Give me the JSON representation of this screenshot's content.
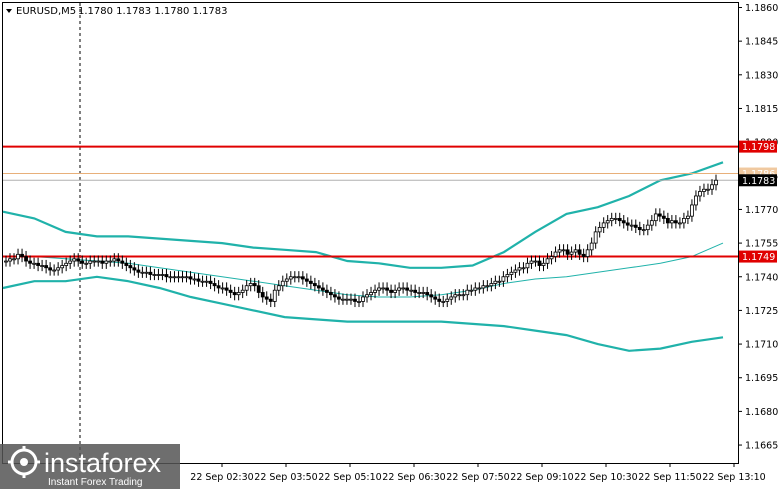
{
  "header": {
    "symbol": "EURUSD,M5",
    "ohlc": "1.1780 1.1783 1.1780 1.1783"
  },
  "watermark": {
    "brand": "instaforex",
    "tagline": "Instant Forex Trading"
  },
  "colors": {
    "background": "#ffffff",
    "candle": "#000000",
    "bollinger": "#20b2aa",
    "level_line": "#e00000",
    "level_label_bg": "#e00000",
    "price_label_bg": "#000000",
    "grid_dash": "#000000"
  },
  "chart_data": {
    "type": "candlestick",
    "ylim": [
      1.1657,
      1.1862
    ],
    "y_ticks": [
      "1.1860",
      "1.1845",
      "1.1830",
      "1.1815",
      "1.1800",
      "1.1785",
      "1.1770",
      "1.1755",
      "1.1740",
      "1.1725",
      "1.1710",
      "1.1695",
      "1.1680",
      "1.1665"
    ],
    "x_tick_labels": [
      "22 Sep 02:30",
      "22 Sep 03:50",
      "22 Sep 05:10",
      "22 Sep 06:30",
      "22 Sep 07:50",
      "22 Sep 09:10",
      "22 Sep 10:30",
      "22 Sep 11:50",
      "22 Sep 13:10"
    ],
    "levels": [
      {
        "price": 1.1798,
        "label": "1.1798"
      },
      {
        "price": 1.1749,
        "label": "1.1749"
      }
    ],
    "current_price": {
      "price": 1.1783,
      "label": "1.1783"
    },
    "secondary_price": {
      "price": 1.1786,
      "label": "1.1786"
    },
    "close": [
      1.1747,
      1.1748,
      1.1748,
      1.175,
      1.1749,
      1.1747,
      1.1746,
      1.1746,
      1.1745,
      1.1745,
      1.1744,
      1.1743,
      1.1743,
      1.1744,
      1.1745,
      1.1746,
      1.1747,
      1.1748,
      1.1747,
      1.1746,
      1.1746,
      1.1747,
      1.1747,
      1.1747,
      1.1746,
      1.1747,
      1.1747,
      1.1748,
      1.1747,
      1.1746,
      1.1745,
      1.1744,
      1.1743,
      1.1742,
      1.1742,
      1.1742,
      1.1741,
      1.1741,
      1.1741,
      1.1741,
      1.174,
      1.174,
      1.174,
      1.174,
      1.174,
      1.174,
      1.1739,
      1.1739,
      1.1738,
      1.1738,
      1.1738,
      1.1737,
      1.1736,
      1.1735,
      1.1735,
      1.1734,
      1.1733,
      1.1732,
      1.1733,
      1.1734,
      1.1736,
      1.1737,
      1.1736,
      1.1733,
      1.1731,
      1.173,
      1.1729,
      1.1734,
      1.1736,
      1.1738,
      1.1739,
      1.174,
      1.174,
      1.174,
      1.1739,
      1.1738,
      1.1737,
      1.1736,
      1.1735,
      1.1734,
      1.1733,
      1.1732,
      1.1731,
      1.173,
      1.173,
      1.173,
      1.173,
      1.1729,
      1.1729,
      1.1731,
      1.1732,
      1.1733,
      1.1734,
      1.1735,
      1.1735,
      1.1734,
      1.1733,
      1.1734,
      1.1735,
      1.1735,
      1.1734,
      1.1734,
      1.1733,
      1.1733,
      1.1733,
      1.1732,
      1.1731,
      1.173,
      1.1729,
      1.1729,
      1.173,
      1.1731,
      1.1732,
      1.1732,
      1.1732,
      1.1734,
      1.1734,
      1.1735,
      1.1735,
      1.1736,
      1.1736,
      1.1737,
      1.1738,
      1.1738,
      1.174,
      1.1741,
      1.1742,
      1.1743,
      1.1744,
      1.1744,
      1.1746,
      1.1747,
      1.1747,
      1.1745,
      1.1746,
      1.1748,
      1.1749,
      1.1751,
      1.1752,
      1.1752,
      1.175,
      1.1751,
      1.1752,
      1.175,
      1.1749,
      1.1752,
      1.1755,
      1.176,
      1.1762,
      1.1764,
      1.1765,
      1.1766,
      1.1766,
      1.1765,
      1.1764,
      1.1763,
      1.1763,
      1.1762,
      1.1761,
      1.1761,
      1.1763,
      1.1765,
      1.1768,
      1.1767,
      1.1766,
      1.1764,
      1.1765,
      1.1764,
      1.1764,
      1.1766,
      1.1767,
      1.1772,
      1.1776,
      1.1778,
      1.1779,
      1.1779,
      1.1781,
      1.1783
    ],
    "bollinger_upper": [
      1.1769,
      1.1766,
      1.176,
      1.1758,
      1.1758,
      1.1757,
      1.1756,
      1.1755,
      1.1753,
      1.1752,
      1.1751,
      1.1747,
      1.1746,
      1.1744,
      1.1744,
      1.1745,
      1.1751,
      1.176,
      1.1768,
      1.1771,
      1.1776,
      1.1783,
      1.1786,
      1.1791
    ],
    "bollinger_middle": [
      1.1749,
      1.1749,
      1.1748,
      1.1747,
      1.1746,
      1.1744,
      1.1742,
      1.174,
      1.1738,
      1.1736,
      1.1734,
      1.1732,
      1.1731,
      1.1731,
      1.1732,
      1.1734,
      1.1737,
      1.1739,
      1.174,
      1.1742,
      1.1744,
      1.1746,
      1.1749,
      1.1755
    ],
    "bollinger_lower": [
      1.1735,
      1.1738,
      1.1738,
      1.174,
      1.1738,
      1.1735,
      1.1731,
      1.1728,
      1.1725,
      1.1722,
      1.1721,
      1.172,
      1.172,
      1.172,
      1.172,
      1.1719,
      1.1718,
      1.1716,
      1.1714,
      1.171,
      1.1707,
      1.1708,
      1.1711,
      1.1713
    ]
  }
}
